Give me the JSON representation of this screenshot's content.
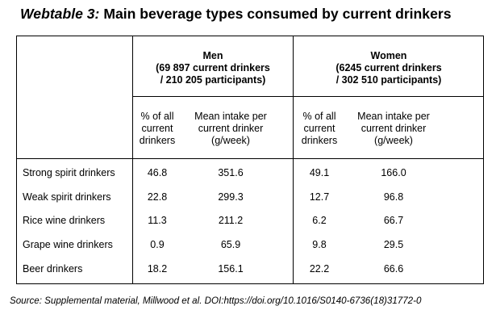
{
  "title": {
    "prefix": "Webtable 3:",
    "text": "Main beverage types consumed by current drinkers"
  },
  "groups": [
    {
      "name": "Men",
      "detail_line1": "(69 897 current drinkers",
      "detail_line2": "/ 210 205 participants)"
    },
    {
      "name": "Women",
      "detail_line1": "(6245 current drinkers",
      "detail_line2": "/ 302 510 participants)"
    }
  ],
  "subheaders": {
    "pct": [
      "% of all",
      "current",
      "drinkers"
    ],
    "mean": [
      "Mean intake per",
      "current drinker",
      "(g/week)"
    ]
  },
  "rows": [
    {
      "label": "Strong spirit drinkers",
      "men_pct": "46.8",
      "men_mean": "351.6",
      "women_pct": "49.1",
      "women_mean": "166.0"
    },
    {
      "label": "Weak spirit drinkers",
      "men_pct": "22.8",
      "men_mean": "299.3",
      "women_pct": "12.7",
      "women_mean": "96.8"
    },
    {
      "label": "Rice wine drinkers",
      "men_pct": "11.3",
      "men_mean": "211.2",
      "women_pct": "6.2",
      "women_mean": "66.7"
    },
    {
      "label": "Grape wine drinkers",
      "men_pct": "0.9",
      "men_mean": "65.9",
      "women_pct": "9.8",
      "women_mean": "29.5"
    },
    {
      "label": "Beer drinkers",
      "men_pct": "18.2",
      "men_mean": "156.1",
      "women_pct": "22.2",
      "women_mean": "66.6"
    }
  ],
  "source": "Source: Supplemental material, Millwood et al. DOI:https://doi.org/10.1016/S0140-6736(18)31772-0"
}
